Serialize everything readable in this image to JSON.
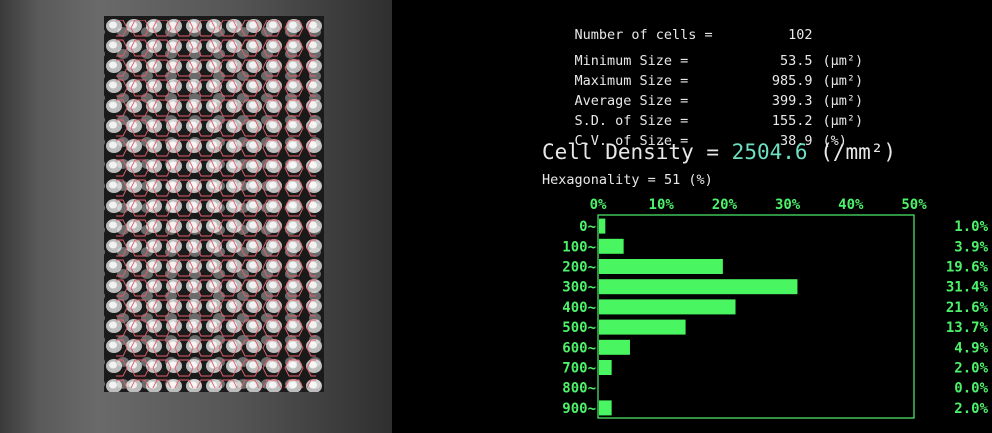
{
  "stats": [
    {
      "label": "Number of cells =",
      "value": "102",
      "unit": ""
    },
    {
      "label": "Minimum Size =",
      "value": "53.5",
      "unit": "(μm²)"
    },
    {
      "label": "Maximum Size =",
      "value": "985.9",
      "unit": "(μm²)"
    },
    {
      "label": "Average Size =",
      "value": "399.3",
      "unit": "(μm²)"
    },
    {
      "label": "S.D. of Size =",
      "value": "155.2",
      "unit": "(μm²)"
    },
    {
      "label": "C.V. of Size =",
      "value": "38.9",
      "unit": "(%)"
    }
  ],
  "density": {
    "label": "Cell Density =",
    "value": "2504.6",
    "unit": "(/mm²)"
  },
  "hexagonality": {
    "label": "Hexagonality =",
    "value": "51",
    "unit": "(%)"
  },
  "colors": {
    "bar": "#49f560",
    "text": "#e8e8e8",
    "density": "#6ee0c0",
    "overlay": "#e0606a"
  },
  "chart_data": {
    "type": "bar",
    "orientation": "horizontal",
    "categories": [
      "0~",
      "100~",
      "200~",
      "300~",
      "400~",
      "500~",
      "600~",
      "700~",
      "800~",
      "900~"
    ],
    "values": [
      1.0,
      3.9,
      19.6,
      31.4,
      21.6,
      13.7,
      4.9,
      2.0,
      0.0,
      2.0
    ],
    "value_labels": [
      "1.0%",
      "3.9%",
      "19.6%",
      "31.4%",
      "21.6%",
      "13.7%",
      "4.9%",
      "2.0%",
      "0.0%",
      "2.0%"
    ],
    "x_ticks": [
      "0%",
      "10%",
      "20%",
      "30%",
      "40%",
      "50%"
    ],
    "xlim": [
      0,
      50
    ]
  }
}
